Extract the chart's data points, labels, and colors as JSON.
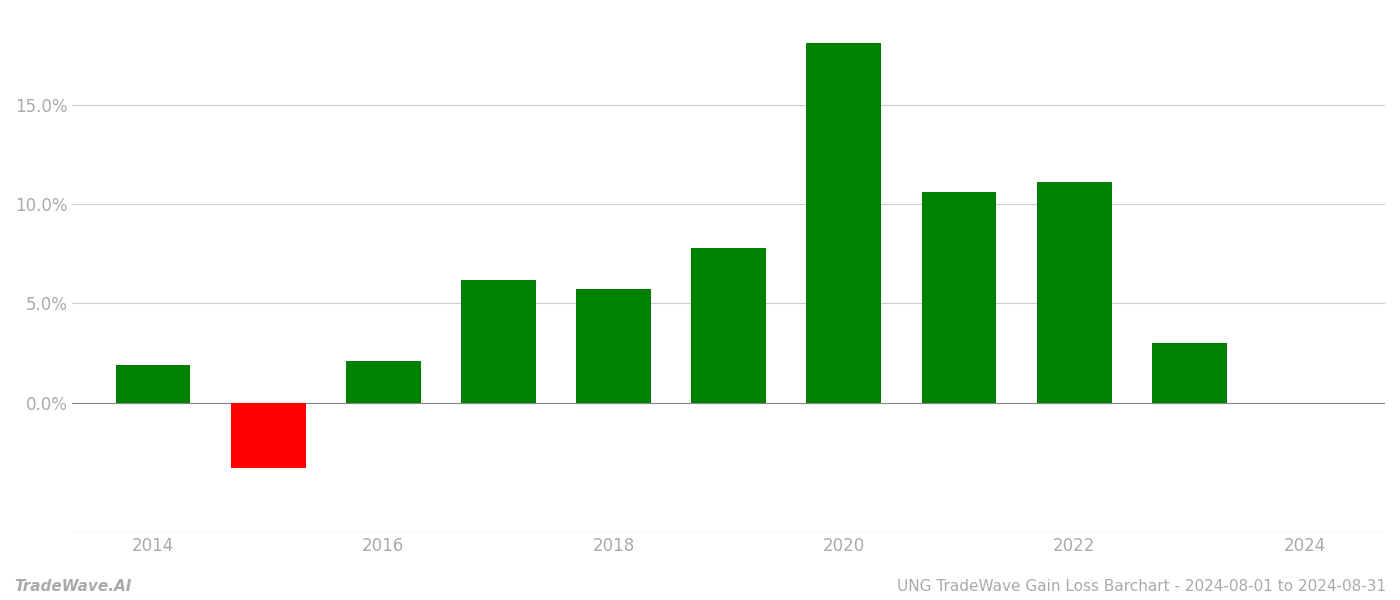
{
  "years": [
    2014,
    2015,
    2016,
    2017,
    2018,
    2019,
    2020,
    2021,
    2022,
    2023
  ],
  "values": [
    0.019,
    -0.033,
    0.021,
    0.062,
    0.057,
    0.078,
    0.181,
    0.106,
    0.111,
    0.03
  ],
  "colors": [
    "#008000",
    "#ff0000",
    "#008000",
    "#008000",
    "#008000",
    "#008000",
    "#008000",
    "#008000",
    "#008000",
    "#008000"
  ],
  "title": "UNG TradeWave Gain Loss Barchart - 2024-08-01 to 2024-08-31",
  "watermark": "TradeWave.AI",
  "ylim_min": -0.065,
  "ylim_max": 0.195,
  "yticks": [
    0.0,
    0.05,
    0.1,
    0.15
  ],
  "xticks": [
    2014,
    2016,
    2018,
    2020,
    2022,
    2024
  ],
  "xlim_min": 2013.3,
  "xlim_max": 2024.7,
  "background_color": "#ffffff",
  "grid_color": "#cccccc",
  "bar_width": 0.65,
  "tick_fontsize": 12,
  "title_fontsize": 11,
  "watermark_fontsize": 11
}
